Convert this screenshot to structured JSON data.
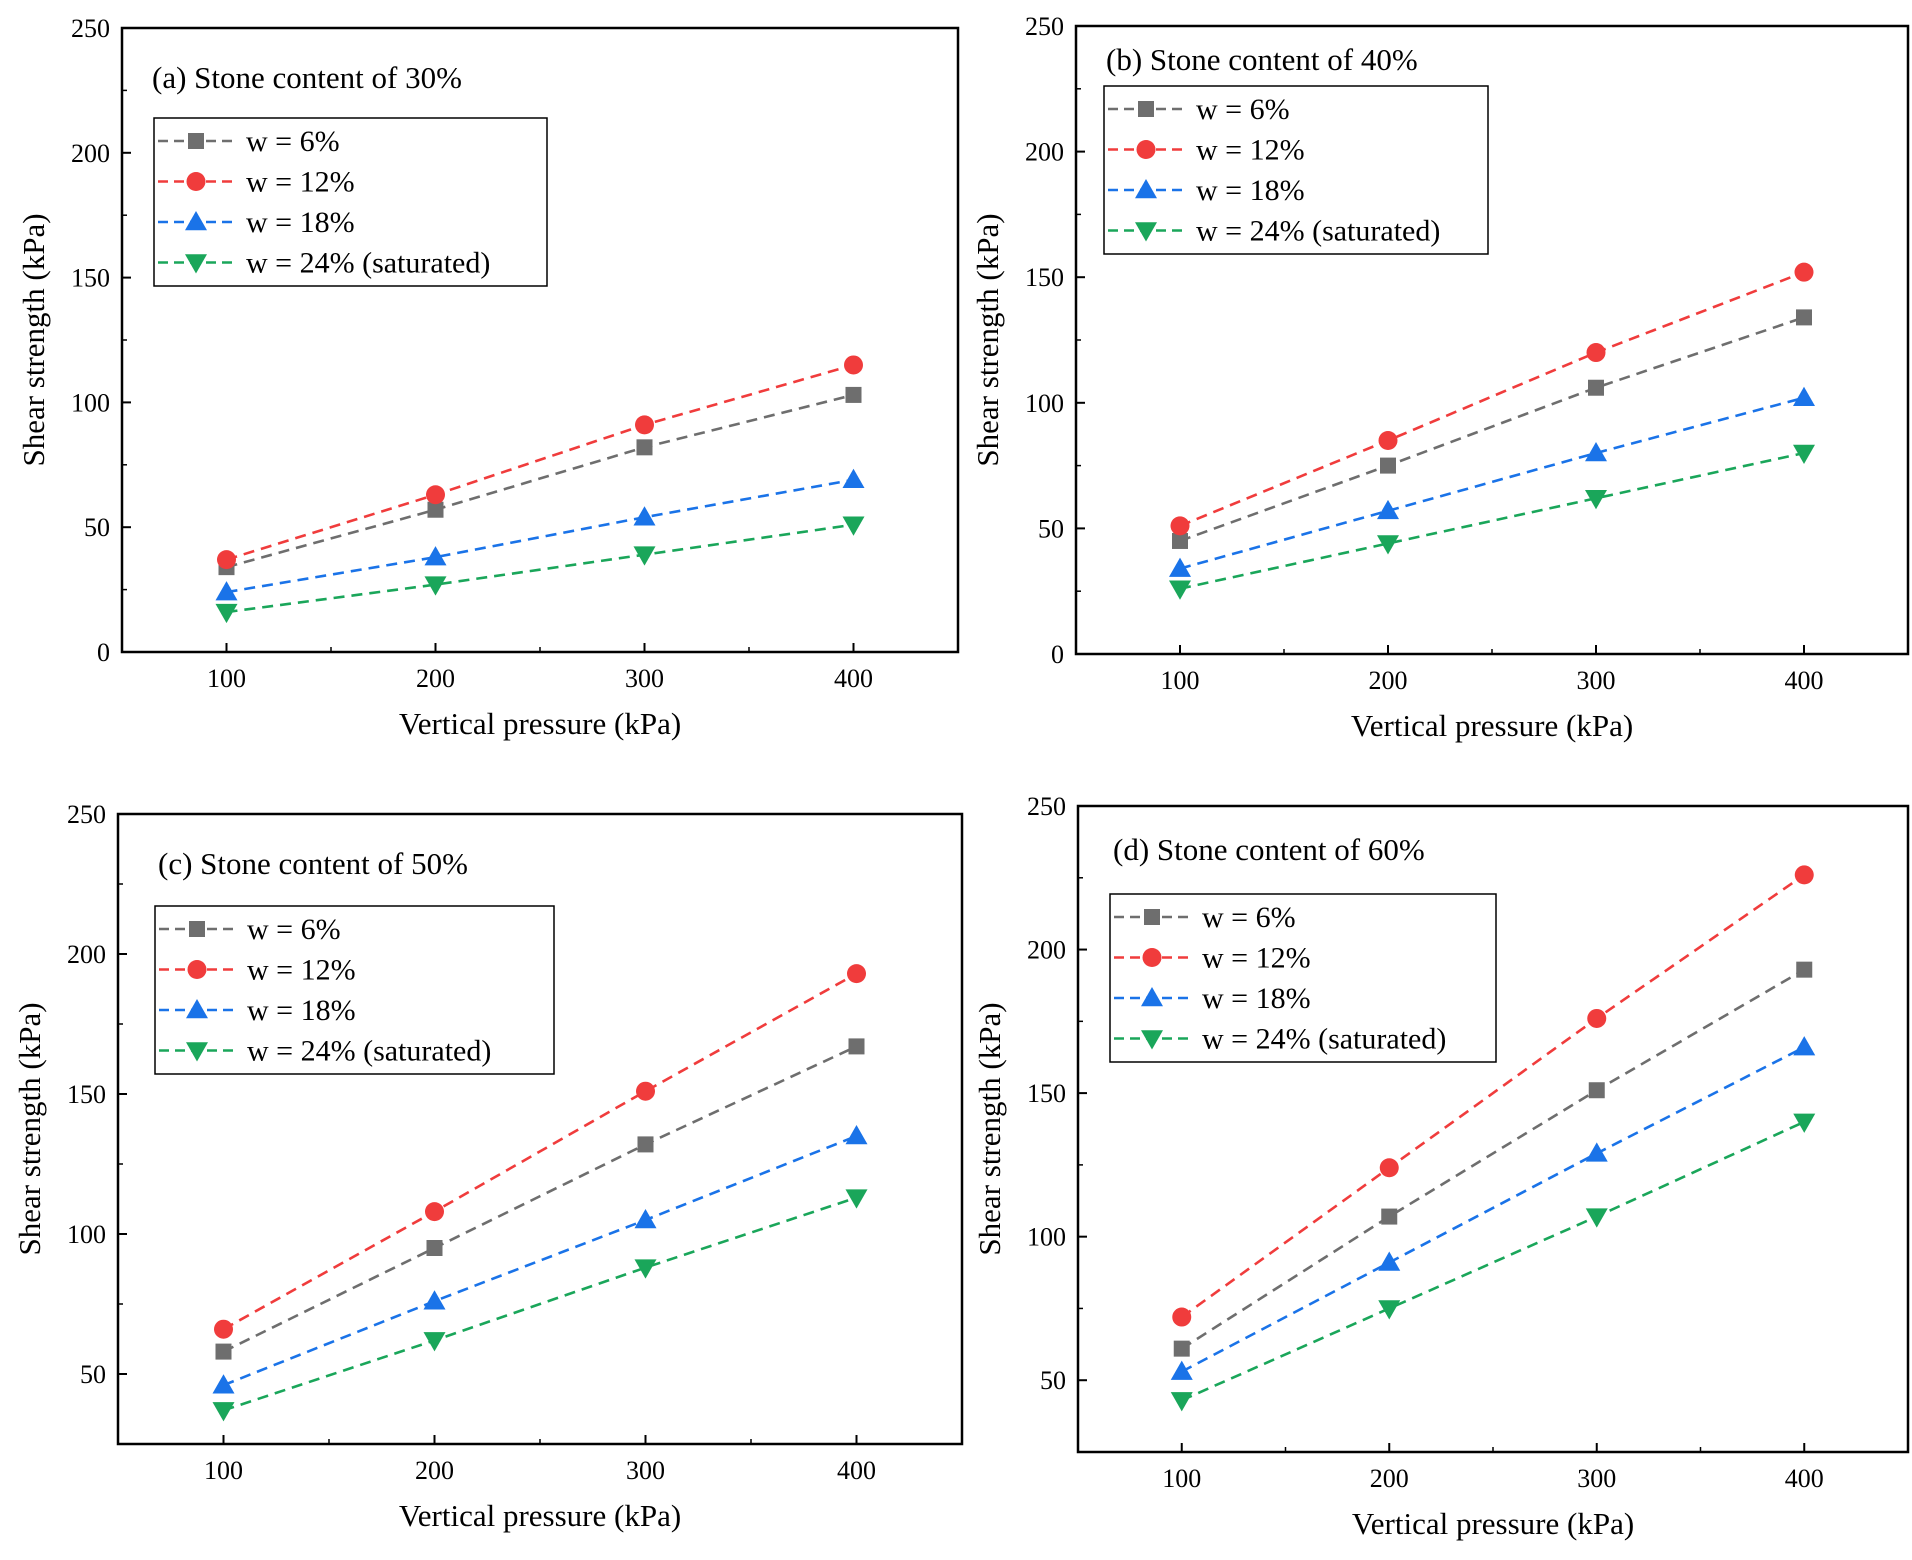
{
  "colors": {
    "w6": "#6e6e6e",
    "w12": "#f03c3c",
    "w18": "#1a73e8",
    "w24": "#1aa65a"
  },
  "chart_data": [
    {
      "type": "line",
      "title": "(a) Stone content of 30%",
      "xlabel": "Vertical pressure (kPa)",
      "ylabel": "Shear strength (kPa)",
      "x": [
        100,
        200,
        300,
        400
      ],
      "xlim": [
        50,
        450
      ],
      "ylim": [
        0,
        250
      ],
      "yticks": [
        0,
        50,
        100,
        150,
        200,
        250
      ],
      "legend_position": "top-left",
      "series": [
        {
          "name": "w = 6%",
          "marker": "square",
          "color_key": "w6",
          "values": [
            34,
            57,
            82,
            103
          ]
        },
        {
          "name": "w = 12%",
          "marker": "circle",
          "color_key": "w12",
          "values": [
            37,
            63,
            91,
            115
          ]
        },
        {
          "name": "w = 18%",
          "marker": "triangle-up",
          "color_key": "w18",
          "values": [
            24,
            38,
            54,
            69
          ]
        },
        {
          "name": "w = 24% (saturated)",
          "marker": "triangle-down",
          "color_key": "w24",
          "values": [
            16,
            27,
            39,
            51
          ]
        }
      ]
    },
    {
      "type": "line",
      "title": "(b) Stone content of 40%",
      "xlabel": "Vertical pressure (kPa)",
      "ylabel": "Shear strength (kPa)",
      "x": [
        100,
        200,
        300,
        400
      ],
      "xlim": [
        50,
        450
      ],
      "ylim": [
        0,
        250
      ],
      "yticks": [
        0,
        50,
        100,
        150,
        200,
        250
      ],
      "legend_position": "top-left",
      "series": [
        {
          "name": "w = 6%",
          "marker": "square",
          "color_key": "w6",
          "values": [
            45,
            75,
            106,
            134
          ]
        },
        {
          "name": "w = 12%",
          "marker": "circle",
          "color_key": "w12",
          "values": [
            51,
            85,
            120,
            152
          ]
        },
        {
          "name": "w = 18%",
          "marker": "triangle-up",
          "color_key": "w18",
          "values": [
            34,
            57,
            80,
            102
          ]
        },
        {
          "name": "w = 24% (saturated)",
          "marker": "triangle-down",
          "color_key": "w24",
          "values": [
            26,
            44,
            62,
            80
          ]
        }
      ]
    },
    {
      "type": "line",
      "title": "(c) Stone content of 50%",
      "xlabel": "Vertical pressure (kPa)",
      "ylabel": "Shear strength (kPa)",
      "x": [
        100,
        200,
        300,
        400
      ],
      "xlim": [
        50,
        450
      ],
      "ylim": [
        25,
        250
      ],
      "yticks": [
        50,
        100,
        150,
        200,
        250
      ],
      "legend_position": "top-left",
      "series": [
        {
          "name": "w = 6%",
          "marker": "square",
          "color_key": "w6",
          "values": [
            58,
            95,
            132,
            167
          ]
        },
        {
          "name": "w = 12%",
          "marker": "circle",
          "color_key": "w12",
          "values": [
            66,
            108,
            151,
            193
          ]
        },
        {
          "name": "w = 18%",
          "marker": "triangle-up",
          "color_key": "w18",
          "values": [
            46,
            76,
            105,
            135
          ]
        },
        {
          "name": "w = 24% (saturated)",
          "marker": "triangle-down",
          "color_key": "w24",
          "values": [
            37,
            62,
            88,
            113
          ]
        }
      ]
    },
    {
      "type": "line",
      "title": "(d) Stone content of 60%",
      "xlabel": "Vertical pressure (kPa)",
      "ylabel": "Shear strength (kPa)",
      "x": [
        100,
        200,
        300,
        400
      ],
      "xlim": [
        50,
        450
      ],
      "ylim": [
        25,
        250
      ],
      "yticks": [
        50,
        100,
        150,
        200,
        250
      ],
      "legend_position": "top-left",
      "series": [
        {
          "name": "w = 6%",
          "marker": "square",
          "color_key": "w6",
          "values": [
            61,
            107,
            151,
            193
          ]
        },
        {
          "name": "w = 12%",
          "marker": "circle",
          "color_key": "w12",
          "values": [
            72,
            124,
            176,
            226
          ]
        },
        {
          "name": "w = 18%",
          "marker": "triangle-up",
          "color_key": "w18",
          "values": [
            53,
            91,
            129,
            166
          ]
        },
        {
          "name": "w = 24% (saturated)",
          "marker": "triangle-down",
          "color_key": "w24",
          "values": [
            43,
            75,
            107,
            140
          ]
        }
      ]
    }
  ]
}
